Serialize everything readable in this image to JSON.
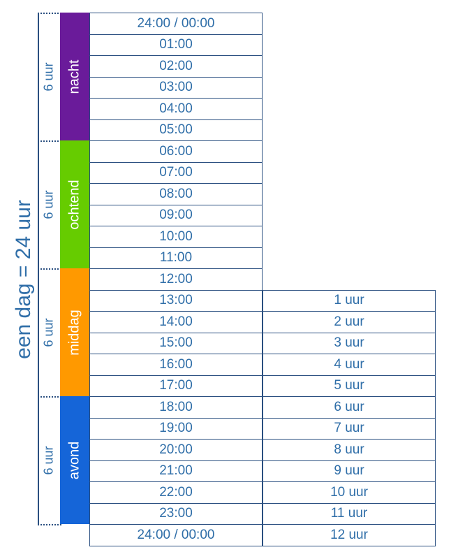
{
  "title": "een dag = 24 uur",
  "periods": [
    {
      "name": "nacht",
      "duration": "6 uur",
      "color": "#6a1b9a"
    },
    {
      "name": "ochtend",
      "duration": "6 uur",
      "color": "#66cc00"
    },
    {
      "name": "middag",
      "duration": "6 uur",
      "color": "#ff9900"
    },
    {
      "name": "avond",
      "duration": "6 uur",
      "color": "#1565d8"
    }
  ],
  "times": [
    "24:00 / 00:00",
    "01:00",
    "02:00",
    "03:00",
    "04:00",
    "05:00",
    "06:00",
    "07:00",
    "08:00",
    "09:00",
    "10:00",
    "11:00",
    "12:00",
    "13:00",
    "14:00",
    "15:00",
    "16:00",
    "17:00",
    "18:00",
    "19:00",
    "20:00",
    "21:00",
    "22:00",
    "23:00",
    "24:00 / 00:00"
  ],
  "afternoon_hours": [
    "1 uur",
    "2 uur",
    "3 uur",
    "4 uur",
    "5 uur",
    "6 uur",
    "7 uur",
    "8 uur",
    "9 uur",
    "10 uur",
    "11 uur",
    "12 uur"
  ]
}
